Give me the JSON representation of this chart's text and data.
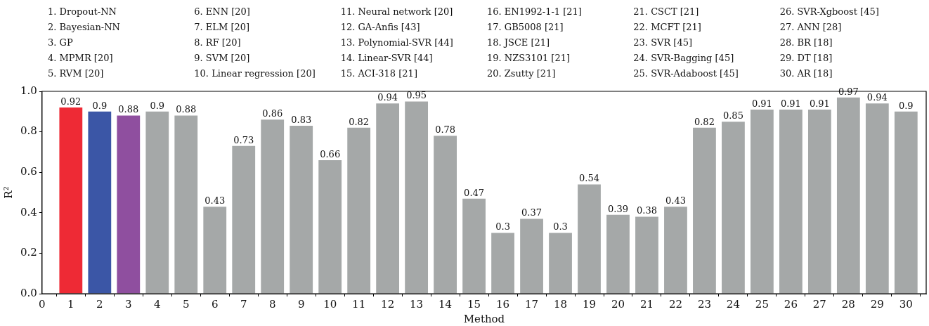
{
  "chart_data": {
    "type": "bar",
    "xlabel": "Method",
    "ylabel": "R²",
    "x": [
      1,
      2,
      3,
      4,
      5,
      6,
      7,
      8,
      9,
      10,
      11,
      12,
      13,
      14,
      15,
      16,
      17,
      18,
      19,
      20,
      21,
      22,
      23,
      24,
      25,
      26,
      27,
      28,
      29,
      30
    ],
    "values": [
      0.92,
      0.9,
      0.88,
      0.9,
      0.88,
      0.43,
      0.73,
      0.86,
      0.83,
      0.66,
      0.82,
      0.94,
      0.95,
      0.78,
      0.47,
      0.3,
      0.37,
      0.3,
      0.54,
      0.39,
      0.38,
      0.43,
      0.82,
      0.85,
      0.91,
      0.91,
      0.91,
      0.97,
      0.94,
      0.9
    ],
    "colors": [
      "#ee2a35",
      "#3b56a6",
      "#8f4f9f",
      "#a5a8a8",
      "#a5a8a8",
      "#a5a8a8",
      "#a5a8a8",
      "#a5a8a8",
      "#a5a8a8",
      "#a5a8a8",
      "#a5a8a8",
      "#a5a8a8",
      "#a5a8a8",
      "#a5a8a8",
      "#a5a8a8",
      "#a5a8a8",
      "#a5a8a8",
      "#a5a8a8",
      "#a5a8a8",
      "#a5a8a8",
      "#a5a8a8",
      "#a5a8a8",
      "#a5a8a8",
      "#a5a8a8",
      "#a5a8a8",
      "#a5a8a8",
      "#a5a8a8",
      "#a5a8a8",
      "#a5a8a8",
      "#a5a8a8"
    ],
    "xlim": [
      0,
      30.7
    ],
    "xticks": [
      0,
      1,
      2,
      3,
      4,
      5,
      6,
      7,
      8,
      9,
      10,
      11,
      12,
      13,
      14,
      15,
      16,
      17,
      18,
      19,
      20,
      21,
      22,
      23,
      24,
      25,
      26,
      27,
      28,
      29,
      30
    ],
    "ylim": [
      0,
      1
    ],
    "yticks": [
      {
        "value": 0,
        "label": "0.0"
      },
      0.2,
      0.4,
      0.6,
      0.8,
      {
        "value": 1,
        "label": "1.0"
      }
    ],
    "data_labels": true,
    "grid": false,
    "legend": false,
    "annotations": [
      "1. Dropout-NN",
      "2. Bayesian-NN",
      "3. GP",
      "4. MPMR [20]",
      "5. RVM [20]",
      "6. ENN [20]",
      "7. ELM [20]",
      "8. RF [20]",
      "9. SVM [20]",
      "10. Linear regression [20]",
      "11. Neural network [20]",
      "12. GA-Anfis [43]",
      "13. Polynomial-SVR [44]",
      "14. Linear-SVR [44]",
      "15. ACI-318 [21]",
      "16. EN1992-1-1 [21]",
      "17. GB5008 [21]",
      "18. JSCE [21]",
      "19. NZS3101 [21]",
      "20. Zsutty [21]",
      "21. CSCT [21]",
      "22. MCFT [21]",
      "23. SVR [45]",
      "24. SVR-Bagging [45]",
      "25. SVR-Adaboost [45]",
      "26. SVR-Xgboost [45]",
      "27. ANN [28]",
      "28. BR [18]",
      "29. DT [18]",
      "30. AR [18]"
    ]
  }
}
